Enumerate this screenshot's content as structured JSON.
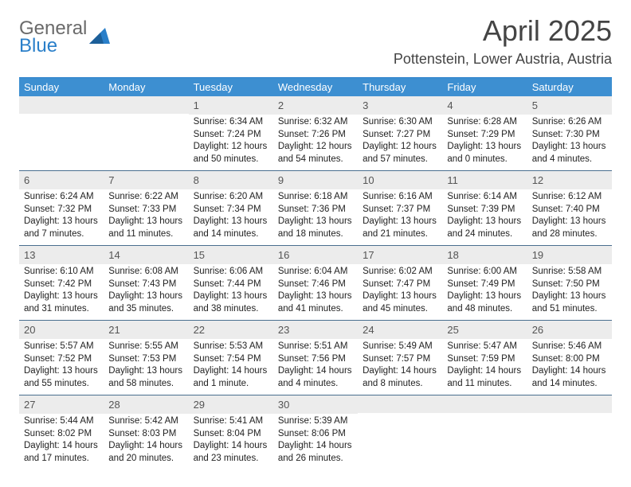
{
  "brand": {
    "text1": "General",
    "text2": "Blue"
  },
  "title": "April 2025",
  "location": "Pottenstein, Lower Austria, Austria",
  "colors": {
    "header_bg": "#3d8fd1",
    "header_text": "#ffffff",
    "daynum_bg": "#ececec",
    "week_border": "#4a6f8f",
    "accent": "#2a7fc9"
  },
  "daysOfWeek": [
    "Sunday",
    "Monday",
    "Tuesday",
    "Wednesday",
    "Thursday",
    "Friday",
    "Saturday"
  ],
  "weeks": [
    [
      {
        "num": "",
        "lines": []
      },
      {
        "num": "",
        "lines": []
      },
      {
        "num": "1",
        "lines": [
          "Sunrise: 6:34 AM",
          "Sunset: 7:24 PM",
          "Daylight: 12 hours",
          "and 50 minutes."
        ]
      },
      {
        "num": "2",
        "lines": [
          "Sunrise: 6:32 AM",
          "Sunset: 7:26 PM",
          "Daylight: 12 hours",
          "and 54 minutes."
        ]
      },
      {
        "num": "3",
        "lines": [
          "Sunrise: 6:30 AM",
          "Sunset: 7:27 PM",
          "Daylight: 12 hours",
          "and 57 minutes."
        ]
      },
      {
        "num": "4",
        "lines": [
          "Sunrise: 6:28 AM",
          "Sunset: 7:29 PM",
          "Daylight: 13 hours",
          "and 0 minutes."
        ]
      },
      {
        "num": "5",
        "lines": [
          "Sunrise: 6:26 AM",
          "Sunset: 7:30 PM",
          "Daylight: 13 hours",
          "and 4 minutes."
        ]
      }
    ],
    [
      {
        "num": "6",
        "lines": [
          "Sunrise: 6:24 AM",
          "Sunset: 7:32 PM",
          "Daylight: 13 hours",
          "and 7 minutes."
        ]
      },
      {
        "num": "7",
        "lines": [
          "Sunrise: 6:22 AM",
          "Sunset: 7:33 PM",
          "Daylight: 13 hours",
          "and 11 minutes."
        ]
      },
      {
        "num": "8",
        "lines": [
          "Sunrise: 6:20 AM",
          "Sunset: 7:34 PM",
          "Daylight: 13 hours",
          "and 14 minutes."
        ]
      },
      {
        "num": "9",
        "lines": [
          "Sunrise: 6:18 AM",
          "Sunset: 7:36 PM",
          "Daylight: 13 hours",
          "and 18 minutes."
        ]
      },
      {
        "num": "10",
        "lines": [
          "Sunrise: 6:16 AM",
          "Sunset: 7:37 PM",
          "Daylight: 13 hours",
          "and 21 minutes."
        ]
      },
      {
        "num": "11",
        "lines": [
          "Sunrise: 6:14 AM",
          "Sunset: 7:39 PM",
          "Daylight: 13 hours",
          "and 24 minutes."
        ]
      },
      {
        "num": "12",
        "lines": [
          "Sunrise: 6:12 AM",
          "Sunset: 7:40 PM",
          "Daylight: 13 hours",
          "and 28 minutes."
        ]
      }
    ],
    [
      {
        "num": "13",
        "lines": [
          "Sunrise: 6:10 AM",
          "Sunset: 7:42 PM",
          "Daylight: 13 hours",
          "and 31 minutes."
        ]
      },
      {
        "num": "14",
        "lines": [
          "Sunrise: 6:08 AM",
          "Sunset: 7:43 PM",
          "Daylight: 13 hours",
          "and 35 minutes."
        ]
      },
      {
        "num": "15",
        "lines": [
          "Sunrise: 6:06 AM",
          "Sunset: 7:44 PM",
          "Daylight: 13 hours",
          "and 38 minutes."
        ]
      },
      {
        "num": "16",
        "lines": [
          "Sunrise: 6:04 AM",
          "Sunset: 7:46 PM",
          "Daylight: 13 hours",
          "and 41 minutes."
        ]
      },
      {
        "num": "17",
        "lines": [
          "Sunrise: 6:02 AM",
          "Sunset: 7:47 PM",
          "Daylight: 13 hours",
          "and 45 minutes."
        ]
      },
      {
        "num": "18",
        "lines": [
          "Sunrise: 6:00 AM",
          "Sunset: 7:49 PM",
          "Daylight: 13 hours",
          "and 48 minutes."
        ]
      },
      {
        "num": "19",
        "lines": [
          "Sunrise: 5:58 AM",
          "Sunset: 7:50 PM",
          "Daylight: 13 hours",
          "and 51 minutes."
        ]
      }
    ],
    [
      {
        "num": "20",
        "lines": [
          "Sunrise: 5:57 AM",
          "Sunset: 7:52 PM",
          "Daylight: 13 hours",
          "and 55 minutes."
        ]
      },
      {
        "num": "21",
        "lines": [
          "Sunrise: 5:55 AM",
          "Sunset: 7:53 PM",
          "Daylight: 13 hours",
          "and 58 minutes."
        ]
      },
      {
        "num": "22",
        "lines": [
          "Sunrise: 5:53 AM",
          "Sunset: 7:54 PM",
          "Daylight: 14 hours",
          "and 1 minute."
        ]
      },
      {
        "num": "23",
        "lines": [
          "Sunrise: 5:51 AM",
          "Sunset: 7:56 PM",
          "Daylight: 14 hours",
          "and 4 minutes."
        ]
      },
      {
        "num": "24",
        "lines": [
          "Sunrise: 5:49 AM",
          "Sunset: 7:57 PM",
          "Daylight: 14 hours",
          "and 8 minutes."
        ]
      },
      {
        "num": "25",
        "lines": [
          "Sunrise: 5:47 AM",
          "Sunset: 7:59 PM",
          "Daylight: 14 hours",
          "and 11 minutes."
        ]
      },
      {
        "num": "26",
        "lines": [
          "Sunrise: 5:46 AM",
          "Sunset: 8:00 PM",
          "Daylight: 14 hours",
          "and 14 minutes."
        ]
      }
    ],
    [
      {
        "num": "27",
        "lines": [
          "Sunrise: 5:44 AM",
          "Sunset: 8:02 PM",
          "Daylight: 14 hours",
          "and 17 minutes."
        ]
      },
      {
        "num": "28",
        "lines": [
          "Sunrise: 5:42 AM",
          "Sunset: 8:03 PM",
          "Daylight: 14 hours",
          "and 20 minutes."
        ]
      },
      {
        "num": "29",
        "lines": [
          "Sunrise: 5:41 AM",
          "Sunset: 8:04 PM",
          "Daylight: 14 hours",
          "and 23 minutes."
        ]
      },
      {
        "num": "30",
        "lines": [
          "Sunrise: 5:39 AM",
          "Sunset: 8:06 PM",
          "Daylight: 14 hours",
          "and 26 minutes."
        ]
      },
      {
        "num": "",
        "lines": []
      },
      {
        "num": "",
        "lines": []
      },
      {
        "num": "",
        "lines": []
      }
    ]
  ]
}
